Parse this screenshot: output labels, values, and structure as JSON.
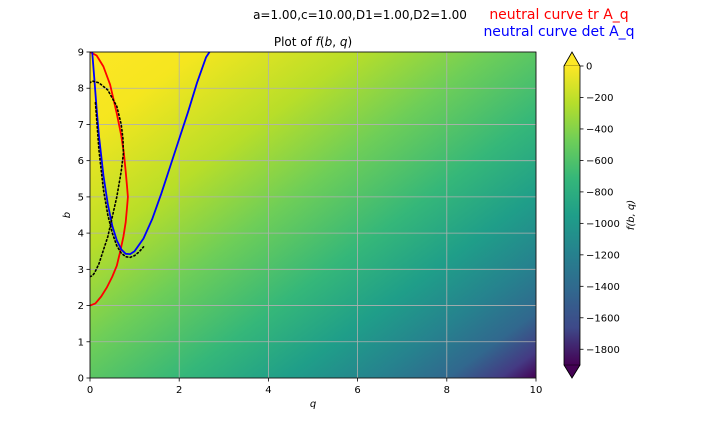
{
  "chart_data": {
    "type": "heatmap",
    "suptitle": "a=1.00,c=10.00,D1=1.00,D2=1.00",
    "title": "Plot of f(b, q)",
    "xlabel": "q",
    "ylabel": "b",
    "xlim": [
      0,
      10
    ],
    "ylim": [
      0,
      9
    ],
    "xticks": [
      "0",
      "2",
      "4",
      "6",
      "8",
      "10"
    ],
    "yticks": [
      "0",
      "1",
      "2",
      "3",
      "4",
      "5",
      "6",
      "7",
      "8",
      "9"
    ],
    "grid": true,
    "colormap": "viridis",
    "colorbar": {
      "label": "f(b, q)",
      "range": [
        -1900,
        0
      ],
      "ticks": [
        "0",
        "−200",
        "−400",
        "−600",
        "−800",
        "−1000",
        "−1200",
        "−1400",
        "−1600",
        "−1800"
      ],
      "extend": "both"
    },
    "legend": [
      {
        "name": "neutral curve tr A_q",
        "color": "#ff0000"
      },
      {
        "name": "neutral curve det A_q",
        "color": "#0000ff"
      }
    ],
    "series": [
      {
        "name": "neutral curve tr A_q",
        "color": "#ff0000",
        "style": "solid",
        "x": [
          0.0,
          0.15,
          0.3,
          0.45,
          0.6,
          0.7,
          0.76,
          0.8,
          0.83,
          0.85,
          0.83,
          0.8,
          0.75,
          0.68,
          0.6,
          0.5,
          0.38,
          0.25,
          0.12,
          0.0
        ],
        "y": [
          9.0,
          8.9,
          8.6,
          8.1,
          7.3,
          6.7,
          6.2,
          5.7,
          5.3,
          5.0,
          4.7,
          4.3,
          3.9,
          3.5,
          3.1,
          2.8,
          2.5,
          2.25,
          2.06,
          2.0
        ]
      },
      {
        "name": "neutral curve det A_q",
        "color": "#0000ff",
        "style": "solid",
        "x": [
          0.05,
          0.1,
          0.15,
          0.2,
          0.3,
          0.4,
          0.5,
          0.6,
          0.7,
          0.8,
          0.9,
          1.0,
          1.2,
          1.4,
          1.6,
          1.8,
          2.0,
          2.2,
          2.4,
          2.6,
          2.68
        ],
        "y": [
          9.0,
          8.2,
          7.4,
          6.7,
          5.6,
          4.8,
          4.2,
          3.8,
          3.55,
          3.43,
          3.42,
          3.5,
          3.85,
          4.4,
          5.1,
          5.85,
          6.6,
          7.35,
          8.15,
          8.85,
          9.0
        ]
      },
      {
        "name": "",
        "color": "#000000",
        "style": "dotted",
        "x": [
          0.0,
          0.05,
          0.1,
          0.2,
          0.4,
          0.6,
          0.7,
          0.75,
          0.74,
          0.7,
          0.6,
          0.4,
          0.2,
          0.05,
          0.0
        ],
        "y": [
          2.8,
          2.82,
          2.9,
          3.15,
          3.9,
          5.0,
          5.7,
          6.2,
          6.6,
          7.0,
          7.5,
          7.95,
          8.15,
          8.2,
          8.15
        ]
      },
      {
        "name": "",
        "color": "#000000",
        "style": "dotted",
        "x": [
          0.12,
          0.2,
          0.3,
          0.4,
          0.5,
          0.6,
          0.7,
          0.8,
          0.9,
          1.0,
          1.1,
          1.2
        ],
        "y": [
          7.6,
          6.3,
          5.2,
          4.5,
          4.0,
          3.65,
          3.45,
          3.35,
          3.33,
          3.38,
          3.48,
          3.62
        ]
      }
    ]
  }
}
